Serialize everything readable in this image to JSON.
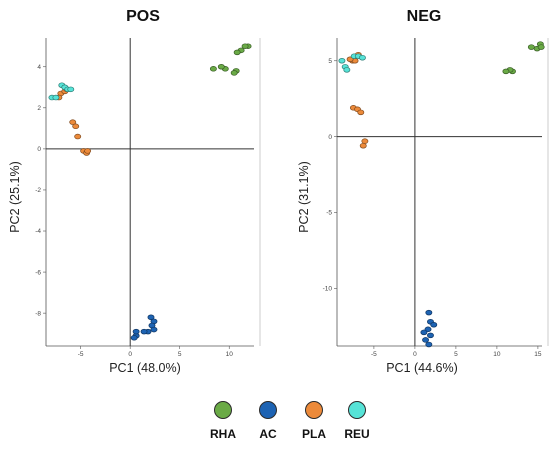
{
  "figure": {
    "legend": [
      {
        "label": "RHA",
        "color": "#6aaa46"
      },
      {
        "label": "AC",
        "color": "#1d63b3"
      },
      {
        "label": "PLA",
        "color": "#ec8a3a"
      },
      {
        "label": "REU",
        "color": "#56e3d7"
      }
    ]
  },
  "chart_data": [
    {
      "type": "scatter",
      "title": "POS",
      "xlabel": "PC1 (48.0%)",
      "ylabel": "PC2 (25.1%)",
      "xlim": [
        -8.5,
        12.5
      ],
      "ylim": [
        -9.6,
        5.4
      ],
      "x_ticks": [
        {
          "v": -5,
          "label": "-5"
        },
        {
          "v": 0,
          "label": "0"
        },
        {
          "v": 5,
          "label": "5"
        },
        {
          "v": 10,
          "label": "10"
        }
      ],
      "y_ticks": [
        {
          "v": 4,
          "label": "4"
        },
        {
          "v": 2,
          "label": "2"
        },
        {
          "v": 0,
          "label": "0"
        },
        {
          "v": -2,
          "label": "-2"
        },
        {
          "v": -4,
          "label": "-4"
        },
        {
          "v": -6,
          "label": "-6"
        },
        {
          "v": -8,
          "label": "-8"
        }
      ],
      "series": [
        {
          "name": "RHA",
          "color": "#6aaa46",
          "points": [
            [
              11.9,
              5.0
            ],
            [
              11.6,
              5.0
            ],
            [
              11.2,
              4.8
            ],
            [
              10.8,
              4.7
            ],
            [
              9.6,
              3.9
            ],
            [
              9.2,
              4.0
            ],
            [
              8.4,
              3.9
            ],
            [
              10.7,
              3.8
            ],
            [
              10.5,
              3.7
            ]
          ]
        },
        {
          "name": "AC",
          "color": "#1d63b3",
          "points": [
            [
              2.1,
              -8.2
            ],
            [
              2.4,
              -8.4
            ],
            [
              2.2,
              -8.6
            ],
            [
              1.8,
              -8.9
            ],
            [
              1.4,
              -8.9
            ],
            [
              0.6,
              -9.1
            ],
            [
              0.4,
              -9.2
            ],
            [
              0.6,
              -8.9
            ],
            [
              2.4,
              -8.8
            ]
          ]
        },
        {
          "name": "PLA",
          "color": "#ec8a3a",
          "points": [
            [
              -7.0,
              2.7
            ],
            [
              -6.6,
              2.8
            ],
            [
              -6.4,
              2.9
            ],
            [
              -7.2,
              2.5
            ],
            [
              -5.8,
              1.3
            ],
            [
              -5.5,
              1.1
            ],
            [
              -5.3,
              0.6
            ],
            [
              -4.7,
              -0.1
            ],
            [
              -4.4,
              -0.2
            ],
            [
              -4.3,
              -0.1
            ]
          ]
        },
        {
          "name": "REU",
          "color": "#56e3d7",
          "points": [
            [
              -7.9,
              2.5
            ],
            [
              -7.5,
              2.5
            ],
            [
              -6.9,
              3.1
            ],
            [
              -6.6,
              3.0
            ],
            [
              -6.3,
              2.9
            ],
            [
              -6.0,
              2.9
            ]
          ]
        }
      ]
    },
    {
      "type": "scatter",
      "title": "NEG",
      "xlabel": "PC1 (44.6%)",
      "ylabel": "PC2 (31.1%)",
      "xlim": [
        -9.5,
        15.5
      ],
      "ylim": [
        -13.8,
        6.5
      ],
      "x_ticks": [
        {
          "v": -5,
          "label": "-5"
        },
        {
          "v": 0,
          "label": "0"
        },
        {
          "v": 5,
          "label": "5"
        },
        {
          "v": 10,
          "label": "10"
        },
        {
          "v": 15,
          "label": "15"
        }
      ],
      "y_ticks": [
        {
          "v": 5,
          "label": "5"
        },
        {
          "v": 0,
          "label": "0"
        },
        {
          "v": -5,
          "label": "-5"
        },
        {
          "v": -10,
          "label": "-10"
        }
      ],
      "series": [
        {
          "name": "RHA",
          "color": "#6aaa46",
          "points": [
            [
              15.3,
              6.1
            ],
            [
              14.9,
              5.8
            ],
            [
              15.4,
              5.9
            ],
            [
              14.2,
              5.9
            ],
            [
              11.9,
              4.3
            ],
            [
              11.6,
              4.4
            ],
            [
              11.1,
              4.3
            ]
          ]
        },
        {
          "name": "AC",
          "color": "#1d63b3",
          "points": [
            [
              1.7,
              -11.6
            ],
            [
              1.9,
              -12.2
            ],
            [
              2.3,
              -12.4
            ],
            [
              1.6,
              -12.7
            ],
            [
              1.1,
              -12.9
            ],
            [
              1.9,
              -13.1
            ],
            [
              1.3,
              -13.4
            ],
            [
              1.7,
              -13.7
            ]
          ]
        },
        {
          "name": "PLA",
          "color": "#ec8a3a",
          "points": [
            [
              -7.6,
              5.0
            ],
            [
              -7.3,
              5.0
            ],
            [
              -7.9,
              5.1
            ],
            [
              -6.9,
              5.4
            ],
            [
              -7.5,
              1.9
            ],
            [
              -7.0,
              1.8
            ],
            [
              -6.6,
              1.6
            ],
            [
              -6.1,
              -0.3
            ],
            [
              -6.3,
              -0.6
            ]
          ]
        },
        {
          "name": "REU",
          "color": "#56e3d7",
          "points": [
            [
              -8.9,
              5.0
            ],
            [
              -8.5,
              4.6
            ],
            [
              -8.3,
              4.4
            ],
            [
              -7.4,
              5.3
            ],
            [
              -6.9,
              5.3
            ],
            [
              -6.4,
              5.2
            ]
          ]
        }
      ]
    }
  ]
}
